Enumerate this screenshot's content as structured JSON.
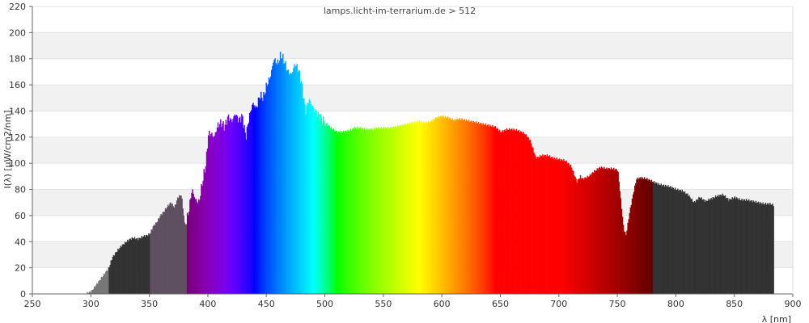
{
  "chart_data": {
    "type": "area",
    "title": "lamps.licht-im-terrarium.de > 512",
    "xlabel": "λ [nm]",
    "ylabel": "I(λ) [µW/cm2/nm]",
    "xlim": [
      250,
      900
    ],
    "ylim": [
      0,
      220
    ],
    "x_ticks": [
      250,
      300,
      350,
      400,
      450,
      500,
      550,
      600,
      650,
      700,
      750,
      800,
      850,
      900
    ],
    "y_ticks": [
      0,
      20,
      40,
      60,
      80,
      100,
      120,
      140,
      160,
      180,
      200,
      220
    ],
    "grid": "horizontal alternating bands",
    "bands": [
      {
        "range": [
          250,
          315
        ],
        "color": "#777777"
      },
      {
        "range": [
          315,
          350
        ],
        "color": "#333333"
      },
      {
        "range": [
          350,
          382
        ],
        "color": "#5e5060"
      },
      {
        "range": [
          382,
          780
        ],
        "color": "visible-spectrum"
      },
      {
        "range": [
          780,
          900
        ],
        "color": "#333333"
      }
    ],
    "series": [
      {
        "x": [
          295,
          300,
          305,
          310,
          315,
          318,
          322,
          326,
          330,
          333,
          336,
          340,
          344,
          348,
          350,
          353,
          356,
          359,
          362,
          365,
          368,
          371,
          374,
          377,
          380,
          383,
          386,
          389,
          392,
          395,
          398,
          400,
          402,
          405,
          408,
          411,
          414,
          417,
          420,
          423,
          426,
          429,
          432,
          435,
          438,
          441,
          444,
          447,
          450,
          453,
          456,
          459,
          462,
          465,
          468,
          471,
          474,
          477,
          480,
          483,
          486,
          490,
          495,
          500,
          505,
          510,
          515,
          520,
          525,
          530,
          535,
          540,
          545,
          550,
          555,
          560,
          565,
          570,
          575,
          580,
          585,
          590,
          595,
          600,
          605,
          610,
          615,
          620,
          625,
          630,
          635,
          640,
          645,
          650,
          655,
          660,
          665,
          670,
          675,
          680,
          685,
          690,
          695,
          700,
          705,
          710,
          715,
          718,
          720,
          725,
          730,
          735,
          740,
          745,
          750,
          755,
          757,
          760,
          763,
          766,
          770,
          775,
          780,
          785,
          790,
          795,
          800,
          805,
          810,
          815,
          820,
          825,
          830,
          835,
          840,
          845,
          850,
          855,
          860,
          865,
          870,
          875,
          880,
          883
        ],
        "y": [
          0,
          2,
          8,
          14,
          20,
          28,
          33,
          37,
          40,
          42,
          43,
          42,
          44,
          45,
          46,
          52,
          55,
          60,
          63,
          67,
          70,
          66,
          74,
          76,
          52,
          62,
          80,
          72,
          70,
          86,
          100,
          122,
          123,
          120,
          129,
          131,
          128,
          136,
          132,
          138,
          133,
          136,
          120,
          136,
          146,
          142,
          152,
          150,
          160,
          166,
          180,
          176,
          183,
          178,
          170,
          168,
          176,
          172,
          160,
          140,
          149,
          142,
          136,
          131,
          127,
          124,
          124,
          125,
          127,
          127,
          126,
          126,
          127,
          127,
          127,
          128,
          129,
          130,
          131,
          132,
          131,
          132,
          135,
          136,
          135,
          133,
          134,
          133,
          132,
          131,
          130,
          129,
          128,
          124,
          126,
          126,
          125,
          123,
          118,
          104,
          106,
          106,
          104,
          103,
          102,
          98,
          86,
          90,
          88,
          90,
          94,
          97,
          96,
          96,
          95,
          50,
          45,
          62,
          76,
          88,
          89,
          88,
          86,
          84,
          83,
          82,
          80,
          79,
          76,
          70,
          74,
          71,
          73,
          75,
          76,
          72,
          74,
          72,
          72,
          71,
          70,
          69,
          69,
          68
        ]
      }
    ]
  }
}
